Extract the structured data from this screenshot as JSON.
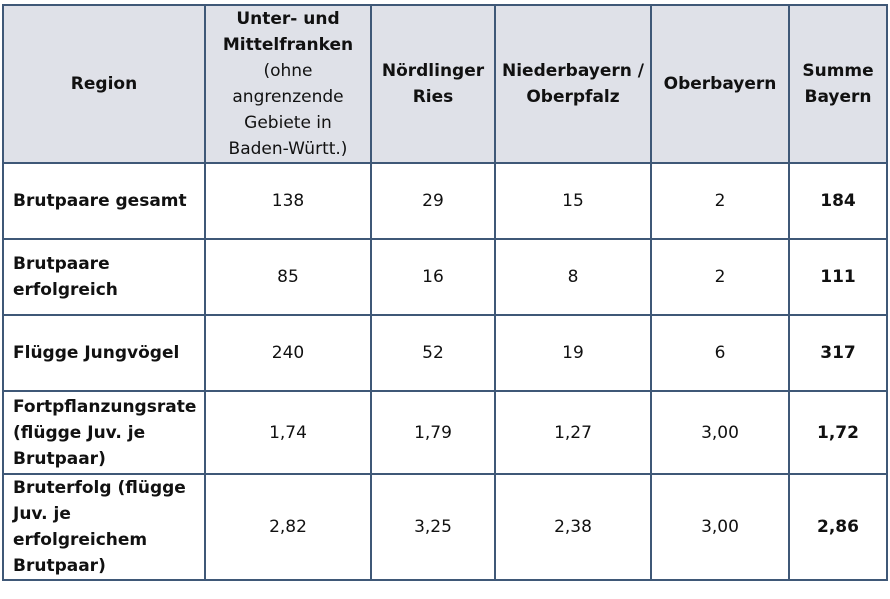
{
  "table": {
    "headers": {
      "region": "Region",
      "col1_bold": "Unter- und Mittelfranken",
      "col1_sub": "(ohne angrenzende Gebiete in Baden-Württ.)",
      "col2": "Nördlinger Ries",
      "col3": "Niederbayern / Oberpfalz",
      "col4": "Oberbayern",
      "col5": "Summe Bayern"
    },
    "rows": [
      {
        "label": "Brutpaare gesamt",
        "values": [
          "138",
          "29",
          "15",
          "2"
        ],
        "total": "184"
      },
      {
        "label": "Brutpaare erfolgreich",
        "values": [
          "85",
          "16",
          "8",
          "2"
        ],
        "total": "111"
      },
      {
        "label": "Flügge Jungvögel",
        "values": [
          "240",
          "52",
          "19",
          "6"
        ],
        "total": "317"
      },
      {
        "label": "Fortpflanzungsrate (flügge Juv. je Brutpaar)",
        "values": [
          "1,74",
          "1,79",
          "1,27",
          "3,00"
        ],
        "total": "1,72"
      },
      {
        "label": "Bruterfolg (flügge Juv. je erfolgreichem Brutpaar)",
        "values": [
          "2,82",
          "3,25",
          "2,38",
          "3,00"
        ],
        "total": "2,86"
      }
    ]
  }
}
